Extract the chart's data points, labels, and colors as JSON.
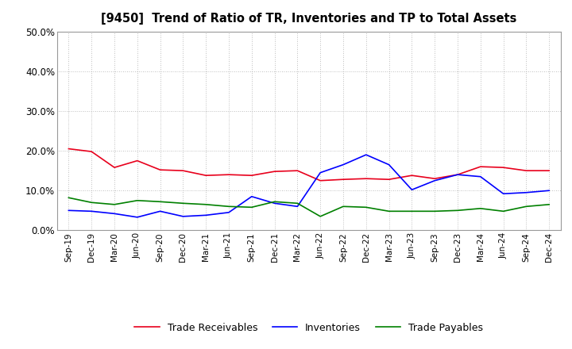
{
  "title": "[9450]  Trend of Ratio of TR, Inventories and TP to Total Assets",
  "x_labels": [
    "Sep-19",
    "Dec-19",
    "Mar-20",
    "Jun-20",
    "Sep-20",
    "Dec-20",
    "Mar-21",
    "Jun-21",
    "Sep-21",
    "Dec-21",
    "Mar-22",
    "Jun-22",
    "Sep-22",
    "Dec-22",
    "Mar-23",
    "Jun-23",
    "Sep-23",
    "Dec-23",
    "Mar-24",
    "Jun-24",
    "Sep-24",
    "Dec-24"
  ],
  "trade_receivables": [
    0.205,
    0.198,
    0.158,
    0.175,
    0.152,
    0.15,
    0.138,
    0.14,
    0.138,
    0.148,
    0.15,
    0.125,
    0.128,
    0.13,
    0.128,
    0.138,
    0.13,
    0.14,
    0.16,
    0.158,
    0.15,
    0.15
  ],
  "inventories": [
    0.05,
    0.048,
    0.042,
    0.033,
    0.048,
    0.035,
    0.038,
    0.045,
    0.085,
    0.068,
    0.06,
    0.145,
    0.165,
    0.19,
    0.165,
    0.102,
    0.125,
    0.14,
    0.135,
    0.092,
    0.095,
    0.1
  ],
  "trade_payables": [
    0.082,
    0.07,
    0.065,
    0.075,
    0.072,
    0.068,
    0.065,
    0.06,
    0.058,
    0.072,
    0.068,
    0.035,
    0.06,
    0.058,
    0.048,
    0.048,
    0.048,
    0.05,
    0.055,
    0.048,
    0.06,
    0.065
  ],
  "ylim": [
    0.0,
    0.5
  ],
  "yticks": [
    0.0,
    0.1,
    0.2,
    0.3,
    0.4,
    0.5
  ],
  "line_colors": {
    "trade_receivables": "#e8001c",
    "inventories": "#0000ff",
    "trade_payables": "#008000"
  },
  "background_color": "#ffffff",
  "grid_color": "#aaaaaa",
  "legend_labels": [
    "Trade Receivables",
    "Inventories",
    "Trade Payables"
  ]
}
